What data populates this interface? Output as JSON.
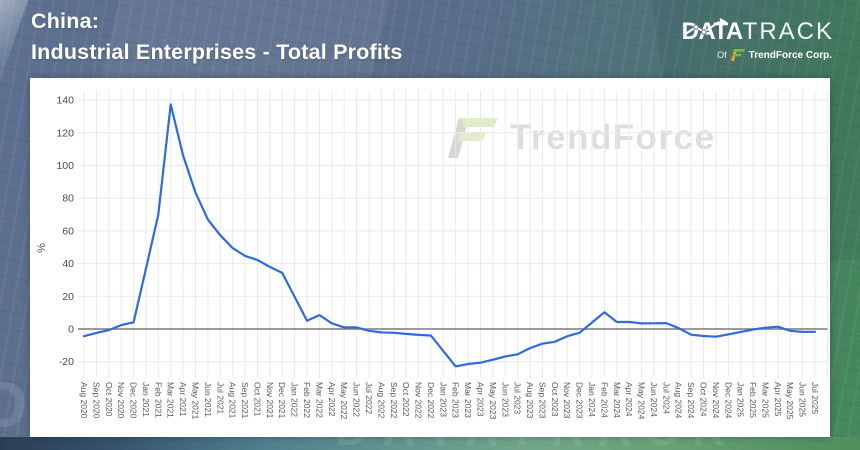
{
  "header": {
    "title_line1": "China:",
    "title_line2": "Industrial Enterprises - Total Profits",
    "logo": {
      "word_bold": "DATA",
      "word_light": "TRACK",
      "sub_of": "Of",
      "sub_company": "TrendForce Corp."
    }
  },
  "panel": {
    "watermark_text": "TrendForce"
  },
  "background": {
    "watermark_text": "DATATRACK",
    "watermark_left_text": "DATA"
  },
  "colors": {
    "line_blue": "#2e6be0",
    "zero_axis": "#7a7a7a",
    "gridline": "#e9e9e9",
    "tick_text": "#4a4a4a",
    "xlabel_text": "#555555",
    "panel_bg": "#ffffff",
    "header_slate": "#5e7190",
    "header_green": "#478a5e",
    "logo_green": "#7ab648",
    "logo_orange": "#f0a32f",
    "watermark_gray": "#d6d6d2",
    "watermark_green": "#e2ecc6"
  },
  "chart_data": {
    "type": "line",
    "title": "China: Industrial Enterprises - Total Profits",
    "xlabel": "",
    "ylabel": "%",
    "grid": true,
    "legend": false,
    "ylim": [
      -30,
      146
    ],
    "yticks": [
      -20,
      0,
      20,
      40,
      60,
      80,
      100,
      120,
      140
    ],
    "x": [
      "Aug 2020",
      "Sep 2020",
      "Oct 2020",
      "Nov 2020",
      "Dec 2020",
      "Jan 2021",
      "Feb 2021",
      "Mar 2021",
      "Apr 2021",
      "May 2021",
      "Jun 2021",
      "Jul 2021",
      "Aug 2021",
      "Sep 2021",
      "Oct 2021",
      "Nov 2021",
      "Dec 2021",
      "Jan 2022",
      "Feb 2022",
      "Mar 2022",
      "Apr 2022",
      "May 2022",
      "Jun 2022",
      "Jul 2022",
      "Aug 2022",
      "Sep 2022",
      "Oct 2022",
      "Nov 2022",
      "Dec 2022",
      "Jan 2023",
      "Feb 2023",
      "Mar 2023",
      "Apr 2023",
      "May 2023",
      "Jun 2023",
      "Jul 2023",
      "Aug 2023",
      "Sep 2023",
      "Oct 2023",
      "Nov 2023",
      "Dec 2023",
      "Jan 2024",
      "Feb 2024",
      "Mar 2024",
      "Apr 2024",
      "May 2024",
      "Jun 2024",
      "Jul 2024",
      "Aug 2024",
      "Sep 2024",
      "Oct 2024",
      "Nov 2024",
      "Dec 2024",
      "Jan 2025",
      "Feb 2025",
      "Mar 2025",
      "Apr 2025",
      "May 2025",
      "Jun 2025",
      "Jul 2025"
    ],
    "values": [
      -4.4,
      -2.4,
      -0.7,
      2.4,
      4.1,
      37.0,
      70.0,
      137.3,
      106.1,
      83.4,
      66.9,
      57.3,
      49.5,
      44.7,
      42.2,
      38.0,
      34.3,
      19.7,
      5.0,
      8.5,
      3.5,
      1.0,
      1.0,
      -1.1,
      -2.1,
      -2.3,
      -3.0,
      -3.6,
      -4.0,
      -13.5,
      -22.9,
      -21.4,
      -20.6,
      -18.8,
      -16.8,
      -15.5,
      -11.7,
      -9.0,
      -7.8,
      -4.4,
      -2.3,
      4.0,
      10.2,
      4.3,
      4.3,
      3.4,
      3.5,
      3.6,
      0.5,
      -3.5,
      -4.3,
      -4.7,
      -3.3,
      -1.8,
      -0.3,
      0.8,
      1.4,
      -1.1,
      -1.8,
      -1.7
    ]
  }
}
